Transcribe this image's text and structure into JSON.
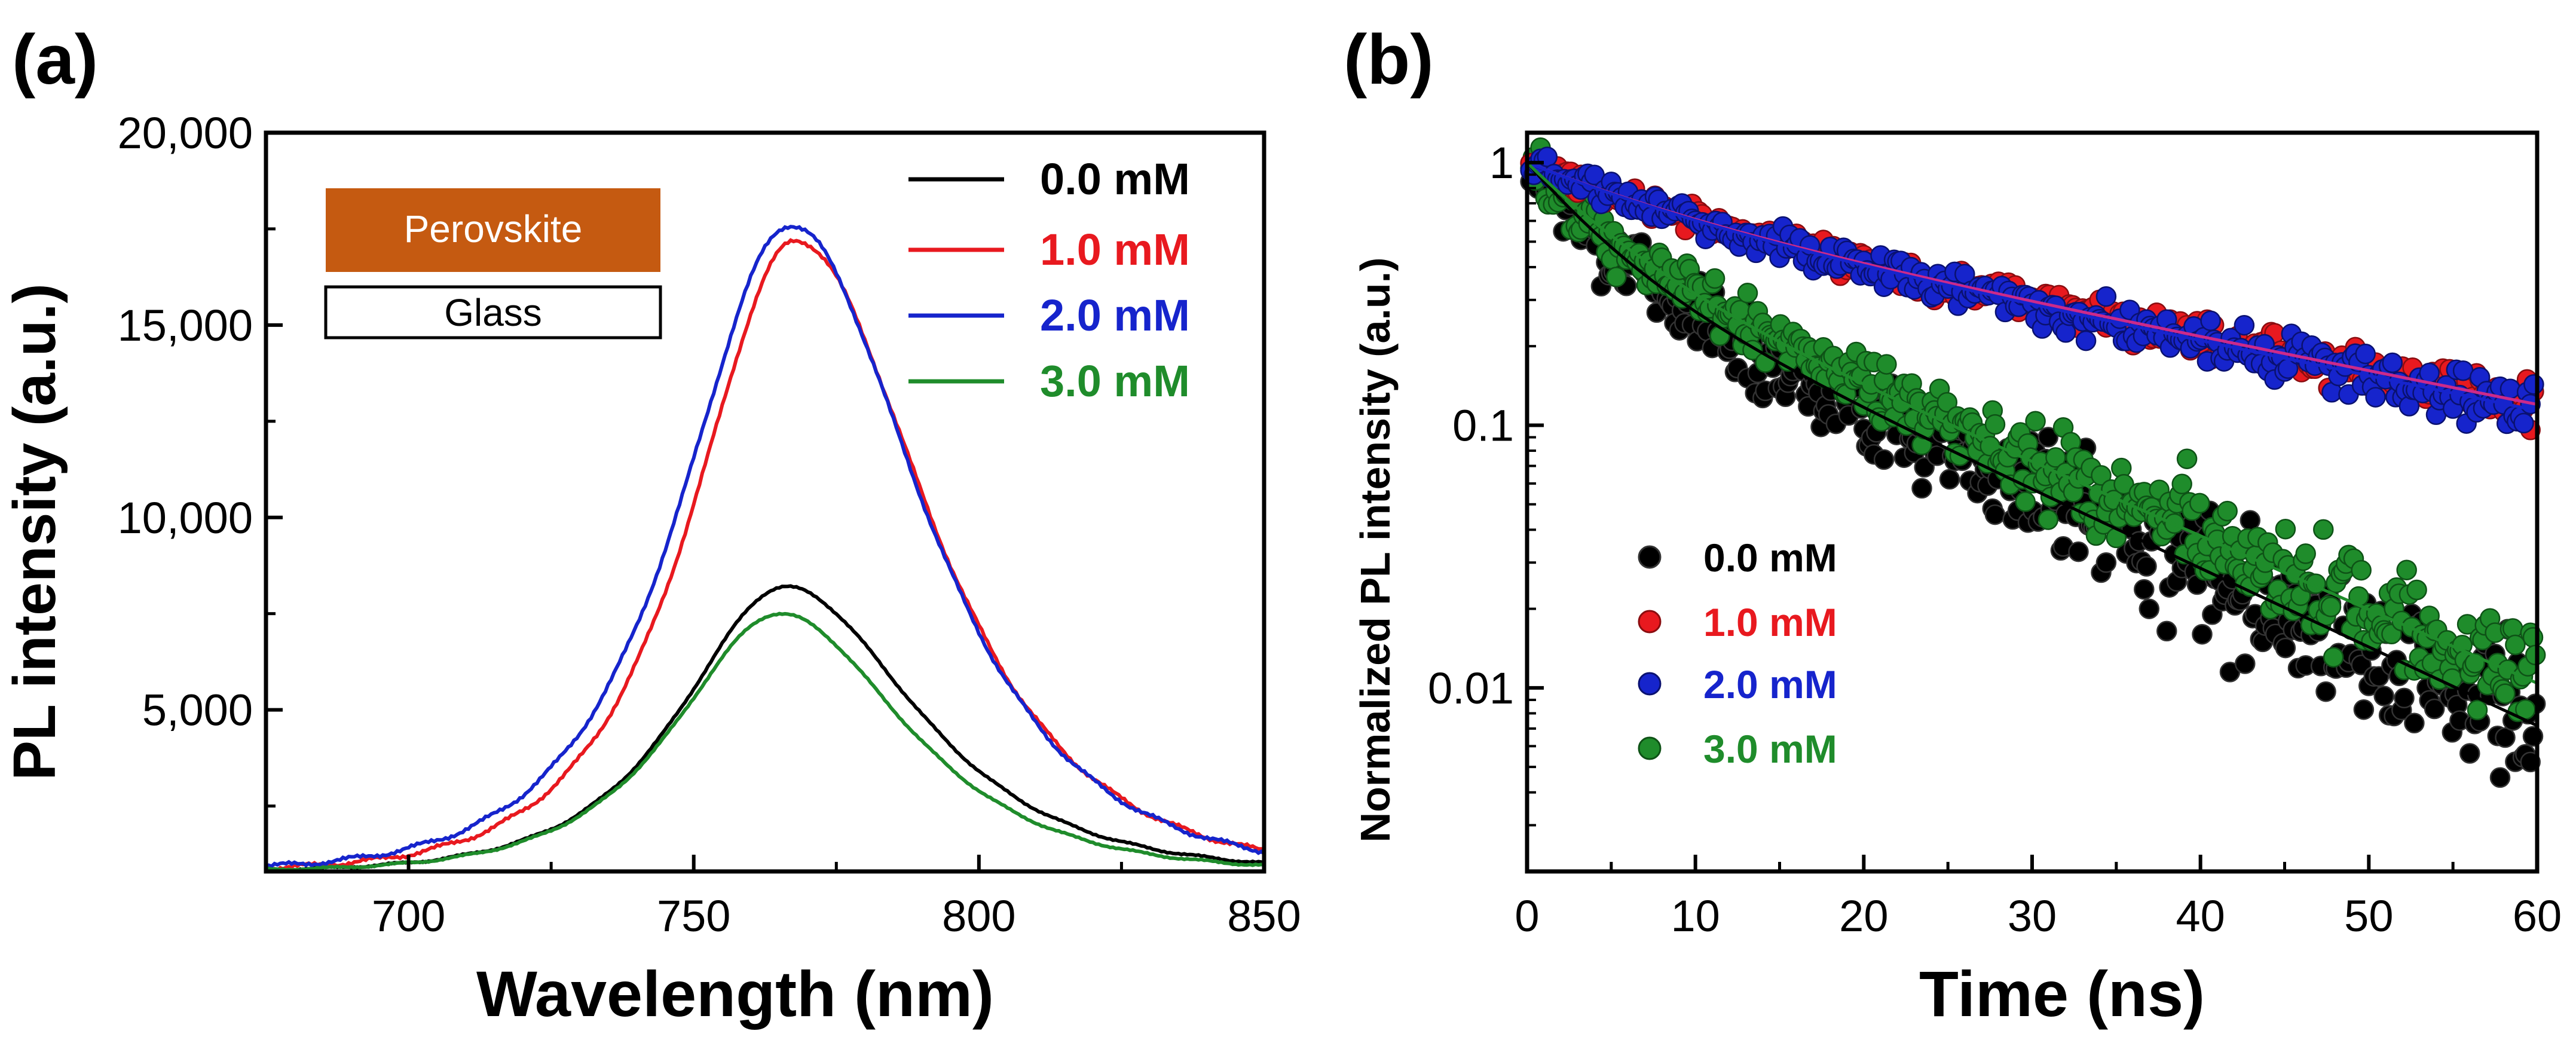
{
  "colors": {
    "black": "#000000",
    "red": "#e8191f",
    "blue": "#1624cc",
    "green": "#1f8c2b",
    "fit_magenta": "#cc2a8a",
    "perovskite": "#c55a11",
    "perovskite_text": "#ffffff"
  },
  "panels": {
    "a": {
      "panel_label": "(a)",
      "inset": {
        "top_label": "Perovskite",
        "bottom_label": "Glass"
      }
    },
    "b": {
      "panel_label": "(b)"
    }
  },
  "chart_data": [
    {
      "id": "a",
      "type": "line",
      "title": "",
      "xlabel": "Wavelength (nm)",
      "ylabel": "PL intensity (a.u.)",
      "xlim": [
        675,
        850
      ],
      "ylim": [
        800,
        20000
      ],
      "xticks": [
        700,
        750,
        800,
        850
      ],
      "yticks": [
        5000,
        10000,
        15000,
        20000
      ],
      "xtick_labels": [
        "700",
        "750",
        "800",
        "850"
      ],
      "ytick_labels": [
        "5,000",
        "10,000",
        "15,000",
        "20,000"
      ],
      "legend_position": "top-right",
      "series": [
        {
          "name": "0.0 mM",
          "color": "#000000",
          "peak_x": 766,
          "peak_y": 8200,
          "hw_left": 19,
          "hw_right": 24,
          "baseline": 800
        },
        {
          "name": "1.0 mM",
          "color": "#e8191f",
          "peak_x": 768,
          "peak_y": 17200,
          "hw_left": 19,
          "hw_right": 24,
          "baseline": 800
        },
        {
          "name": "2.0 mM",
          "color": "#1624cc",
          "peak_x": 767,
          "peak_y": 17600,
          "hw_left": 20,
          "hw_right": 24,
          "baseline": 800
        },
        {
          "name": "3.0 mM",
          "color": "#1f8c2b",
          "peak_x": 765,
          "peak_y": 7500,
          "hw_left": 19,
          "hw_right": 23,
          "baseline": 800
        }
      ]
    },
    {
      "id": "b",
      "type": "scatter",
      "title": "",
      "xlabel": "Time (ns)",
      "ylabel": "Normalized PL intensity (a.u.)",
      "yscale": "log",
      "xlim": [
        0,
        60
      ],
      "ylim": [
        0.002,
        1.3
      ],
      "xticks": [
        0,
        10,
        20,
        30,
        40,
        50,
        60
      ],
      "xtick_labels": [
        "0",
        "10",
        "20",
        "30",
        "40",
        "50",
        "60"
      ],
      "yticks": [
        1,
        0.1,
        0.01
      ],
      "ytick_labels": [
        "1",
        "0.1",
        "0.01"
      ],
      "legend_position": "bottom-left",
      "series": [
        {
          "name": "0.0 mM",
          "color": "#000000",
          "fit_color": "#000000",
          "a1": 0.55,
          "tau1": 4.0,
          "a2": 0.45,
          "tau2": 14.5,
          "noise": 0.18
        },
        {
          "name": "1.0 mM",
          "color": "#e8191f",
          "fit_color": "#cc2a8a",
          "a1": 0.3,
          "tau1": 8.0,
          "a2": 0.7,
          "tau2": 34.0,
          "noise": 0.06
        },
        {
          "name": "2.0 mM",
          "color": "#1624cc",
          "fit_color": "#1624cc",
          "a1": 0.3,
          "tau1": 8.0,
          "a2": 0.7,
          "tau2": 33.0,
          "noise": 0.07
        },
        {
          "name": "3.0 mM",
          "color": "#1f8c2b",
          "fit_color": "#1f8c2b",
          "a1": 0.5,
          "tau1": 4.5,
          "a2": 0.5,
          "tau2": 15.5,
          "noise": 0.14
        }
      ]
    }
  ]
}
